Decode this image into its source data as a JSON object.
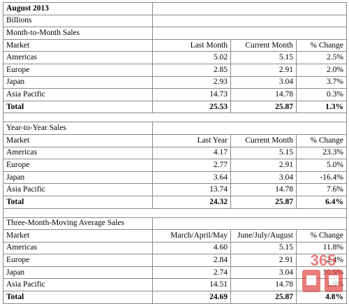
{
  "title": "August 2013",
  "units": "Billions",
  "sections": [
    {
      "heading": "Month-to-Month Sales",
      "columns": [
        "Market",
        "Last Month",
        "Current Month",
        "% Change"
      ],
      "rows": [
        [
          "Americas",
          "5.02",
          "5.15",
          "2.5%"
        ],
        [
          "Europe",
          "2.85",
          "2.91",
          "2.0%"
        ],
        [
          "Japan",
          "2.93",
          "3.04",
          "3.7%"
        ],
        [
          "Asia Pacific",
          "14.73",
          "14.78",
          "0.3%"
        ]
      ],
      "total": [
        "Total",
        "25.53",
        "25.87",
        "1.3%"
      ]
    },
    {
      "heading": "Year-to-Year Sales",
      "columns": [
        "Market",
        "Last Year",
        "Current Month",
        "% Change"
      ],
      "rows": [
        [
          "Americas",
          "4.17",
          "5.15",
          "23.3%"
        ],
        [
          "Europe",
          "2.77",
          "2.91",
          "5.0%"
        ],
        [
          "Japan",
          "3.64",
          "3.04",
          "-16.4%"
        ],
        [
          "Asia Pacific",
          "13.74",
          "14.78",
          "7.6%"
        ]
      ],
      "total": [
        "Total",
        "24.32",
        "25.87",
        "6.4%"
      ]
    },
    {
      "heading": "Three-Month-Moving Average Sales",
      "columns": [
        "Market",
        "March/April/May",
        "June/July/August",
        "% Change"
      ],
      "rows": [
        [
          "Americas",
          "4.60",
          "5.15",
          "11.8%"
        ],
        [
          "Europe",
          "2.84",
          "2.91",
          "2.4%"
        ],
        [
          "Japan",
          "2.74",
          "3.04",
          "10.9%"
        ],
        [
          "Asia Pacific",
          "14.51",
          "14.78",
          "1.9%"
        ]
      ],
      "total": [
        "Total",
        "24.69",
        "25.87",
        "4.8%"
      ]
    }
  ],
  "watermark": {
    "text": "365",
    "color": "#e34a4a"
  }
}
